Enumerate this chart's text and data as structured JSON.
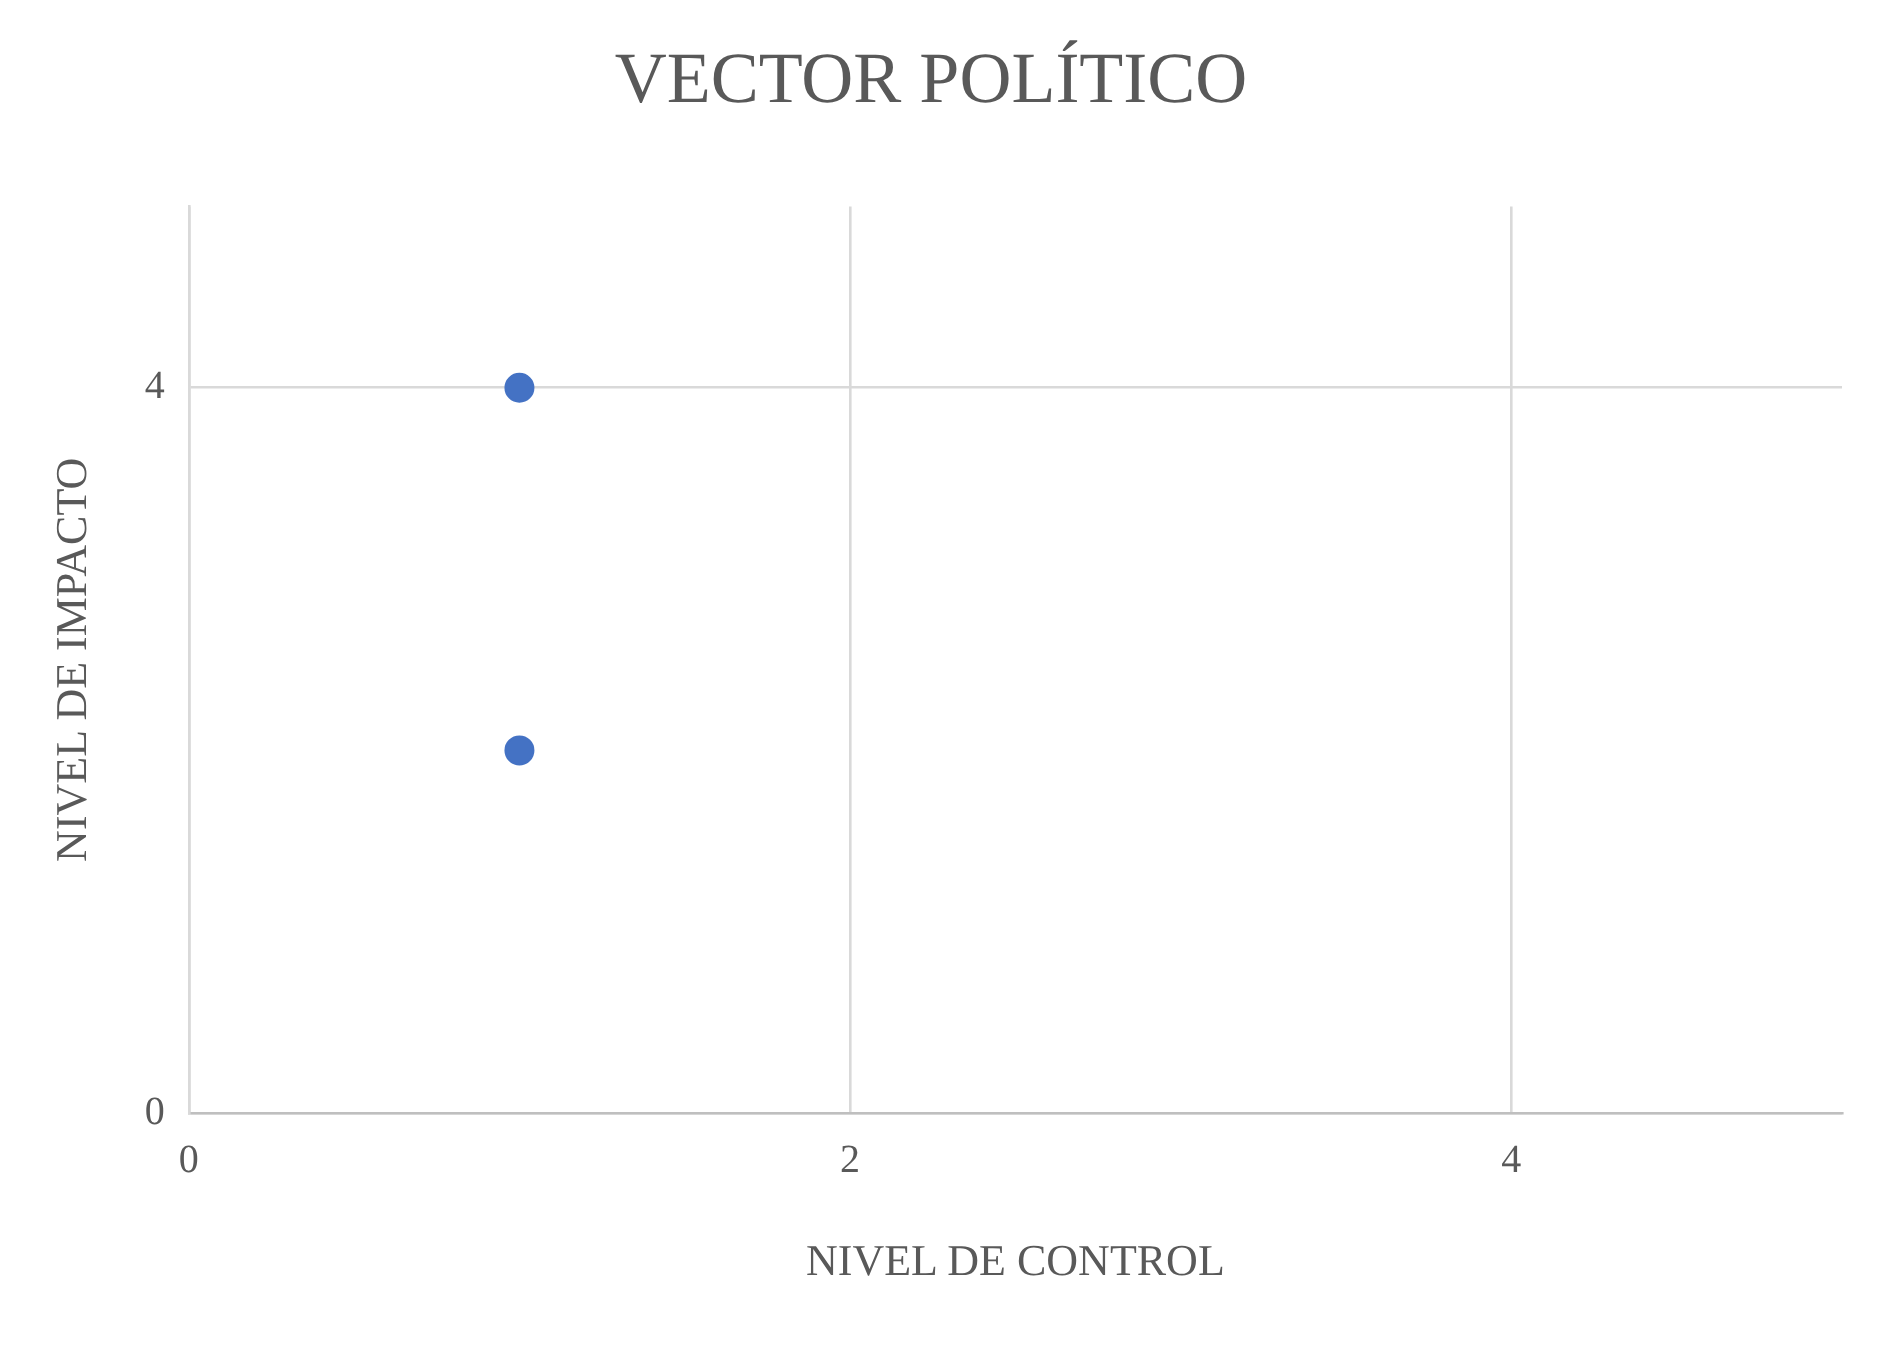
{
  "chart_data": {
    "type": "scatter",
    "title": "VECTOR POLÍTICO",
    "xlabel": "NIVEL DE CONTROL",
    "ylabel": "NIVEL DE IMPACTO",
    "x": [
      1,
      1
    ],
    "series": [
      {
        "color": "#4472c4",
        "values": [
          4,
          2
        ]
      }
    ],
    "xlim": [
      0,
      5
    ],
    "xticks": [
      0,
      2,
      4
    ],
    "ylim": [
      0,
      5
    ],
    "yticks": [
      0,
      4
    ],
    "grid": true,
    "legend": false,
    "marker": "circle"
  }
}
